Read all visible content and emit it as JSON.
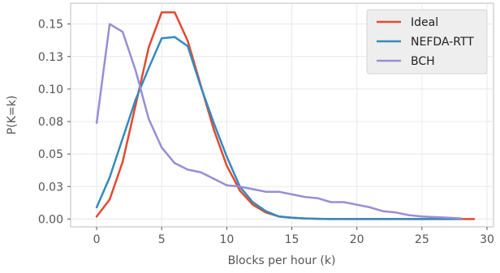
{
  "chart_data": {
    "type": "line",
    "title": "",
    "xlabel": "Blocks per hour (k)",
    "ylabel": "P(K=k)",
    "xlim": [
      -2,
      30.5
    ],
    "ylim": [
      -0.006,
      0.166
    ],
    "xticks": [
      0,
      5,
      10,
      15,
      20,
      25,
      30
    ],
    "yticks": [
      0.0,
      0.025,
      0.05,
      0.075,
      0.1,
      0.125,
      0.15
    ],
    "ytick_labels": [
      "0.00",
      "0.03",
      "0.05",
      "0.08",
      "0.10",
      "0.13",
      "0.15"
    ],
    "grid": true,
    "legend_position": "top-right",
    "series": [
      {
        "name": "Ideal",
        "color": "#E24A33",
        "x": [
          0,
          1,
          2,
          3,
          4,
          5,
          6,
          7,
          8,
          9,
          10,
          11,
          12,
          13,
          14,
          15,
          16,
          17,
          18,
          19,
          20,
          21,
          22,
          23,
          24,
          25,
          26,
          27,
          28,
          29
        ],
        "y": [
          0.002,
          0.015,
          0.044,
          0.088,
          0.132,
          0.159,
          0.159,
          0.137,
          0.103,
          0.069,
          0.041,
          0.022,
          0.011,
          0.005,
          0.002,
          0.001,
          0.0004,
          0.0002,
          0,
          0,
          0,
          0,
          0,
          0,
          0,
          0,
          0,
          0,
          0,
          0
        ]
      },
      {
        "name": "NEFDA-RTT",
        "color": "#348ABD",
        "x": [
          0,
          1,
          2,
          3,
          4,
          5,
          6,
          7,
          8,
          9,
          10,
          11,
          12,
          13,
          14,
          15,
          16,
          17,
          18,
          19,
          20,
          21,
          22,
          23,
          24,
          25,
          26,
          27,
          28
        ],
        "y": [
          0.009,
          0.032,
          0.062,
          0.092,
          0.116,
          0.139,
          0.14,
          0.133,
          0.102,
          0.074,
          0.048,
          0.025,
          0.013,
          0.006,
          0.002,
          0.001,
          0.0005,
          0.0002,
          0,
          0,
          0,
          0,
          0,
          0,
          0,
          0,
          0,
          0,
          0
        ]
      },
      {
        "name": "BCH",
        "color": "#988ED5",
        "x": [
          0,
          1,
          2,
          3,
          4,
          5,
          6,
          7,
          8,
          9,
          10,
          11,
          12,
          13,
          14,
          15,
          16,
          17,
          18,
          19,
          20,
          21,
          22,
          23,
          24,
          25,
          26,
          27,
          28
        ],
        "y": [
          0.074,
          0.15,
          0.144,
          0.114,
          0.077,
          0.055,
          0.043,
          0.038,
          0.036,
          0.031,
          0.026,
          0.025,
          0.023,
          0.021,
          0.021,
          0.019,
          0.017,
          0.016,
          0.013,
          0.013,
          0.011,
          0.009,
          0.006,
          0.005,
          0.003,
          0.002,
          0.0015,
          0.001,
          0.0005
        ]
      }
    ]
  }
}
